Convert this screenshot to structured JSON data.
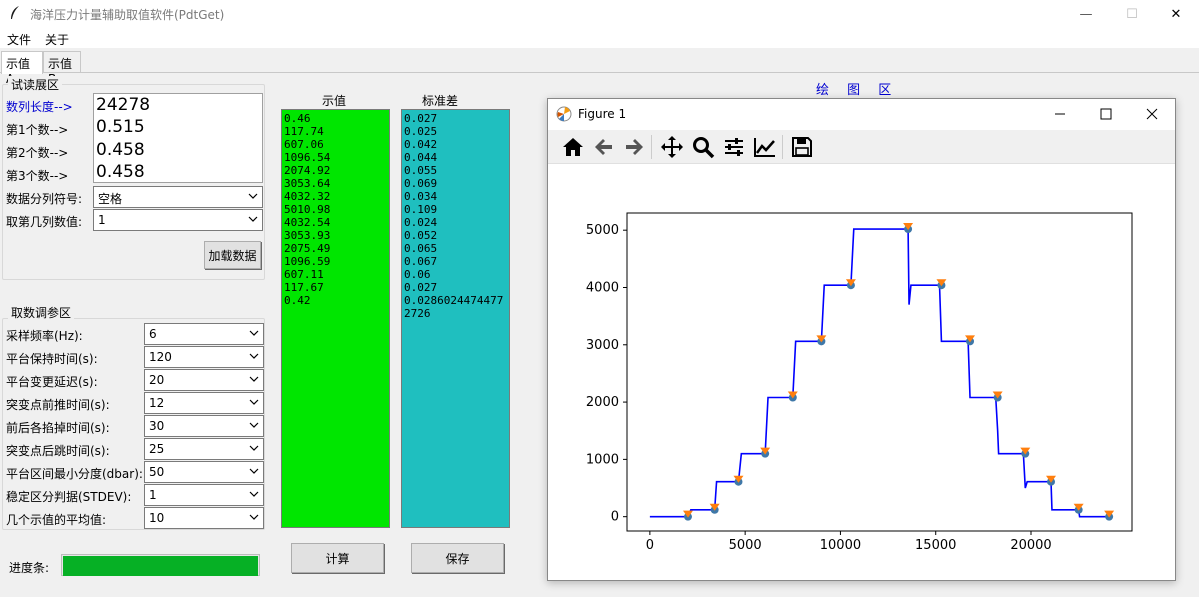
{
  "window": {
    "title": "海洋压力计量辅助取值软件(PdtGet)",
    "minimize": "—",
    "maximize": "☐",
    "close": "✕"
  },
  "menu": {
    "file": "文件",
    "about": "关于"
  },
  "tabs": [
    {
      "label": "示值A"
    },
    {
      "label": "示值B"
    }
  ],
  "trial": {
    "group_label": "试读展区",
    "length_label": "数列长度-->",
    "length_value": "24278",
    "first_label": "第1个数-->",
    "first_value": "0.515",
    "second_label": "第2个数-->",
    "second_value": "0.458",
    "third_label": "第3个数-->",
    "third_value": "0.458",
    "separator_label": "数据分列符号:",
    "separator_value": "空格",
    "column_label": "取第几列数值:",
    "column_value": "1",
    "load_button": "加载数据"
  },
  "params": {
    "group_label": "取数调参区",
    "rows": [
      {
        "label": "采样频率(Hz):",
        "value": "6"
      },
      {
        "label": "平台保持时间(s):",
        "value": "120"
      },
      {
        "label": "平台变更延迟(s):",
        "value": "20"
      },
      {
        "label": "突变点前推时间(s):",
        "value": "12"
      },
      {
        "label": "前后各掐掉时间(s):",
        "value": "30"
      },
      {
        "label": "突变点后跳时间(s):",
        "value": "25"
      },
      {
        "label": "平台区间最小分度(dbar):",
        "value": "50"
      },
      {
        "label": "稳定区分判据(STDEV):",
        "value": "1"
      },
      {
        "label": "几个示值的平均值:",
        "value": "10"
      }
    ]
  },
  "progress": {
    "label": "进度条:",
    "fraction": 1.0,
    "color": "#06b025"
  },
  "results": {
    "values_header": "示值",
    "std_header": "标准差",
    "values": [
      "0.46",
      "117.74",
      "607.06",
      "1096.54",
      "2074.92",
      "3053.64",
      "4032.32",
      "5010.98",
      "4032.54",
      "3053.93",
      "2075.49",
      "1096.59",
      "607.11",
      "117.67",
      "0.42"
    ],
    "stds": [
      "0.027",
      "0.025",
      "0.042",
      "0.044",
      "0.055",
      "0.069",
      "0.034",
      "0.109",
      "0.024",
      "0.052",
      "0.065",
      "0.067",
      "0.06",
      "0.027",
      "0.0286024474477",
      "2726"
    ],
    "values_color": "#00e600",
    "std_color": "#1fbfbf",
    "calc_button": "计算",
    "save_button": "保存"
  },
  "plot_area_label": "绘 图 区",
  "figure": {
    "title": "Figure 1",
    "toolbar": [
      "home-icon",
      "back-icon",
      "forward-icon",
      "pan-icon",
      "zoom-icon",
      "configure-icon",
      "edit-axis-icon",
      "save-icon"
    ]
  },
  "chart_data": {
    "type": "line",
    "title": "",
    "xlabel": "",
    "ylabel": "",
    "xlim": [
      -1200,
      25300
    ],
    "ylim": [
      -250,
      5300
    ],
    "xticks": [
      "0",
      "5000",
      "10000",
      "15000",
      "20000"
    ],
    "xtick_values": [
      0,
      5000,
      10000,
      15000,
      20000
    ],
    "yticks": [
      "0",
      "1000",
      "2000",
      "3000",
      "4000",
      "5000"
    ],
    "ytick_values": [
      0,
      1000,
      2000,
      3000,
      4000,
      5000
    ],
    "series": [
      {
        "color": "#0000ff",
        "x": [
          0,
          1900,
          2000,
          2150,
          3300,
          3400,
          3500,
          4550,
          4650,
          4800,
          5950,
          6050,
          6200,
          7400,
          7500,
          7650,
          8900,
          9000,
          9150,
          10450,
          10550,
          10700,
          13550,
          13600,
          13700,
          13780,
          15200,
          15300,
          15400,
          16700,
          16800,
          16850,
          18150,
          18250,
          18300,
          18400,
          19600,
          19700,
          19800,
          20950,
          21050,
          21100,
          22400,
          22500,
          22550,
          24100
        ],
        "y": [
          0,
          0,
          0,
          120,
          120,
          120,
          610,
          610,
          610,
          1100,
          1100,
          1100,
          2080,
          2080,
          2080,
          3060,
          3060,
          3060,
          4040,
          4040,
          4040,
          5020,
          5020,
          3700,
          4040,
          4040,
          4040,
          3060,
          3060,
          3060,
          2080,
          2080,
          2080,
          1500,
          1100,
          1100,
          1100,
          500,
          610,
          610,
          610,
          120,
          120,
          120,
          0,
          0
        ]
      }
    ],
    "markers_circle": {
      "color": "#3f78a8",
      "x": [
        2000,
        3400,
        4650,
        6050,
        7500,
        9000,
        10550,
        13550,
        15300,
        16800,
        18250,
        19700,
        21050,
        22500,
        24100
      ],
      "y": [
        0,
        120,
        610,
        1100,
        2080,
        3060,
        4040,
        5020,
        4040,
        3060,
        2080,
        1100,
        610,
        120,
        0
      ]
    },
    "markers_triangle": {
      "color": "#ff7f0e",
      "x": [
        2000,
        3400,
        4650,
        6050,
        7500,
        9000,
        10550,
        13550,
        15300,
        16800,
        18250,
        19700,
        21050,
        22500,
        24100
      ],
      "y": [
        0,
        120,
        610,
        1100,
        2080,
        3060,
        4040,
        5020,
        4040,
        3060,
        2080,
        1100,
        610,
        120,
        0
      ]
    },
    "grid": false
  }
}
